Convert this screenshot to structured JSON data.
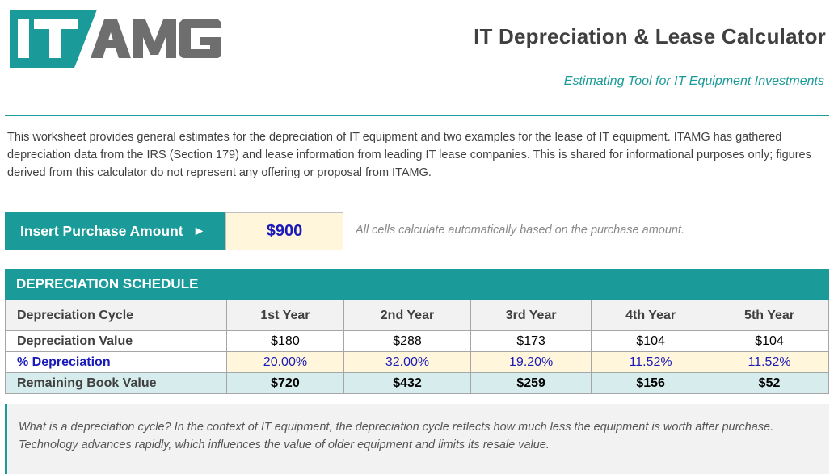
{
  "header": {
    "logo_text": "ITAMG",
    "title": "IT Depreciation & Lease Calculator",
    "subtitle": "Estimating Tool for IT Equipment Investments"
  },
  "intro_text": "This worksheet provides general estimates for the depreciation of IT equipment and two examples for the lease of IT equipment. ITAMG has gathered depreciation data from the IRS (Section 179) and lease information from leading IT lease companies. This is shared for informational purposes only; figures derived from this calculator do not represent any offering or proposal from ITAMG.",
  "purchase": {
    "label": "Insert Purchase Amount",
    "arrow": "►",
    "value": "$900",
    "note": "All cells calculate automatically based on the purchase amount."
  },
  "schedule": {
    "title": "DEPRECIATION SCHEDULE",
    "header_label": "Depreciation Cycle",
    "years": [
      "1st Year",
      "2nd Year",
      "3rd Year",
      "4th Year",
      "5th Year"
    ],
    "rows": [
      {
        "label": "Depreciation Value",
        "values": [
          "$180",
          "$288",
          "$173",
          "$104",
          "$104"
        ]
      },
      {
        "label": "% Depreciation",
        "values": [
          "20.00%",
          "32.00%",
          "19.20%",
          "11.52%",
          "11.52%"
        ]
      },
      {
        "label": "Remaining Book Value",
        "values": [
          "$720",
          "$432",
          "$259",
          "$156",
          "$52"
        ]
      }
    ]
  },
  "faq_text": "What is a depreciation cycle?  In the context of IT equipment, the depreciation cycle reflects how much less the equipment is worth after purchase. Technology advances rapidly, which influences the value of older equipment and limits its resale value.",
  "colors": {
    "accent": "#1a9a98",
    "logo_gray": "#6e6e6e",
    "input_fill": "#fff6dc",
    "input_text": "#1a1ab8",
    "book_row_fill": "#d7ecec"
  }
}
